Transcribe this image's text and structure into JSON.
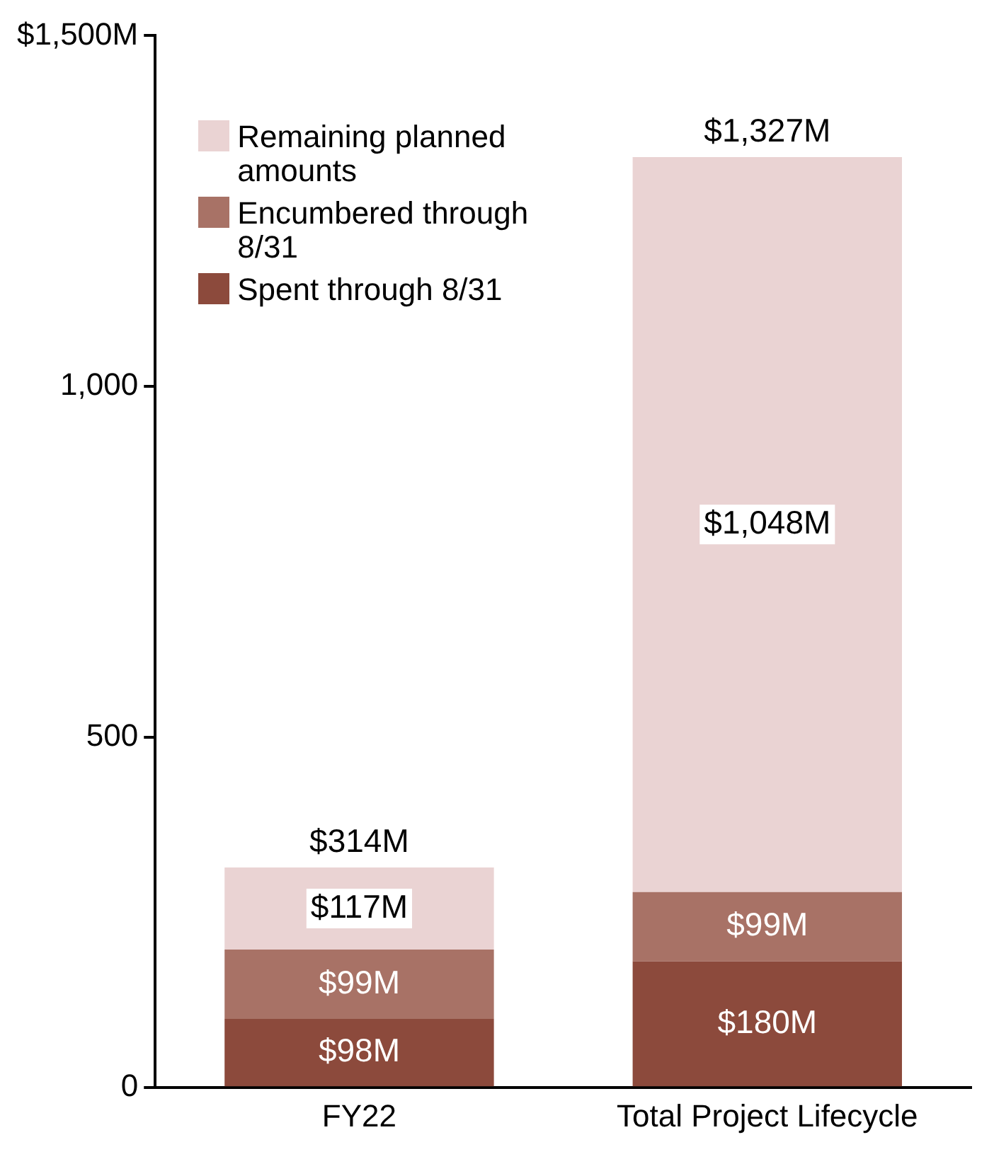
{
  "chart_data": {
    "type": "bar",
    "stacked": true,
    "categories": [
      "FY22",
      "Total Project Lifecycle"
    ],
    "series": [
      {
        "name": "Spent through 8/31",
        "color": "#8c4a3c",
        "values": [
          98,
          180
        ],
        "value_labels": [
          "$98M",
          "$180M"
        ]
      },
      {
        "name": "Encumbered through 8/31",
        "color": "#a87266",
        "values": [
          99,
          99
        ],
        "value_labels": [
          "$99M",
          "$99M"
        ]
      },
      {
        "name": "Remaining planned amounts",
        "color": "#ead3d3",
        "values": [
          117,
          1048
        ],
        "value_labels": [
          "$117M",
          "$1,048M"
        ]
      }
    ],
    "totals": [
      "$314M",
      "$1,327M"
    ],
    "ylim": [
      0,
      1500
    ],
    "yticks": [
      0,
      500,
      {
        "value": 1000,
        "label": "1,000"
      },
      {
        "value": 1500,
        "label": "$1,500M"
      }
    ],
    "grid": false,
    "legend": "top left"
  }
}
